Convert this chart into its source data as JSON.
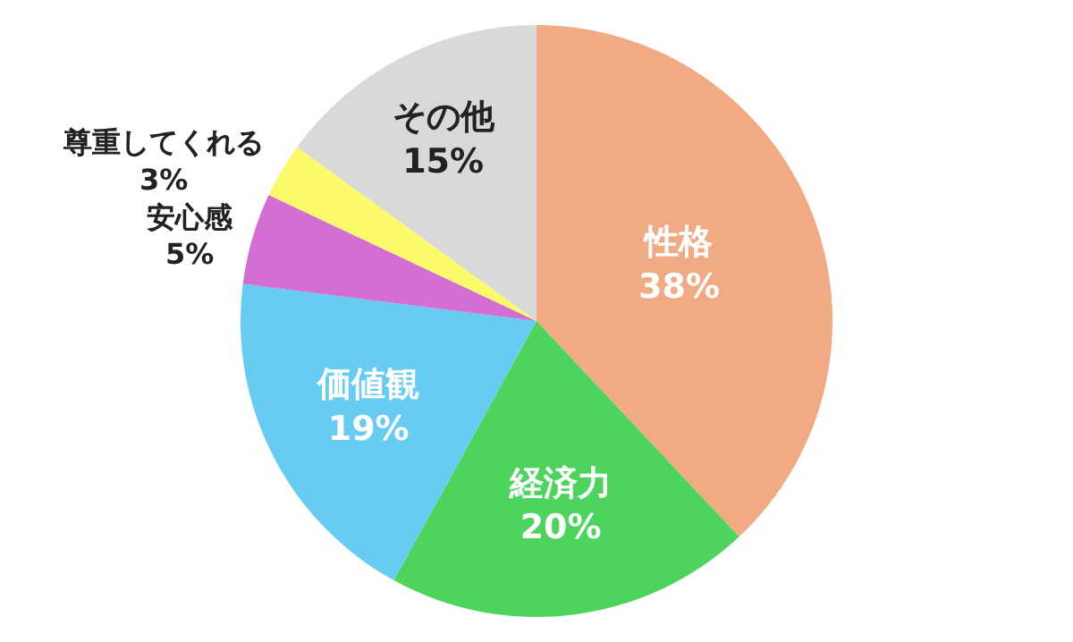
{
  "chart_data": {
    "type": "pie",
    "categories": [
      "性格",
      "経済力",
      "価値観",
      "安心感",
      "尊重してくれる",
      "その他"
    ],
    "values": [
      38,
      20,
      19,
      5,
      3,
      15
    ],
    "value_labels": [
      "38%",
      "20%",
      "19%",
      "5%",
      "3%",
      "15%"
    ],
    "colors": [
      "#f2aa84",
      "#4cd45c",
      "#66ccf2",
      "#d36fd3",
      "#fafa6a",
      "#d9d9d9"
    ],
    "legend": false
  }
}
